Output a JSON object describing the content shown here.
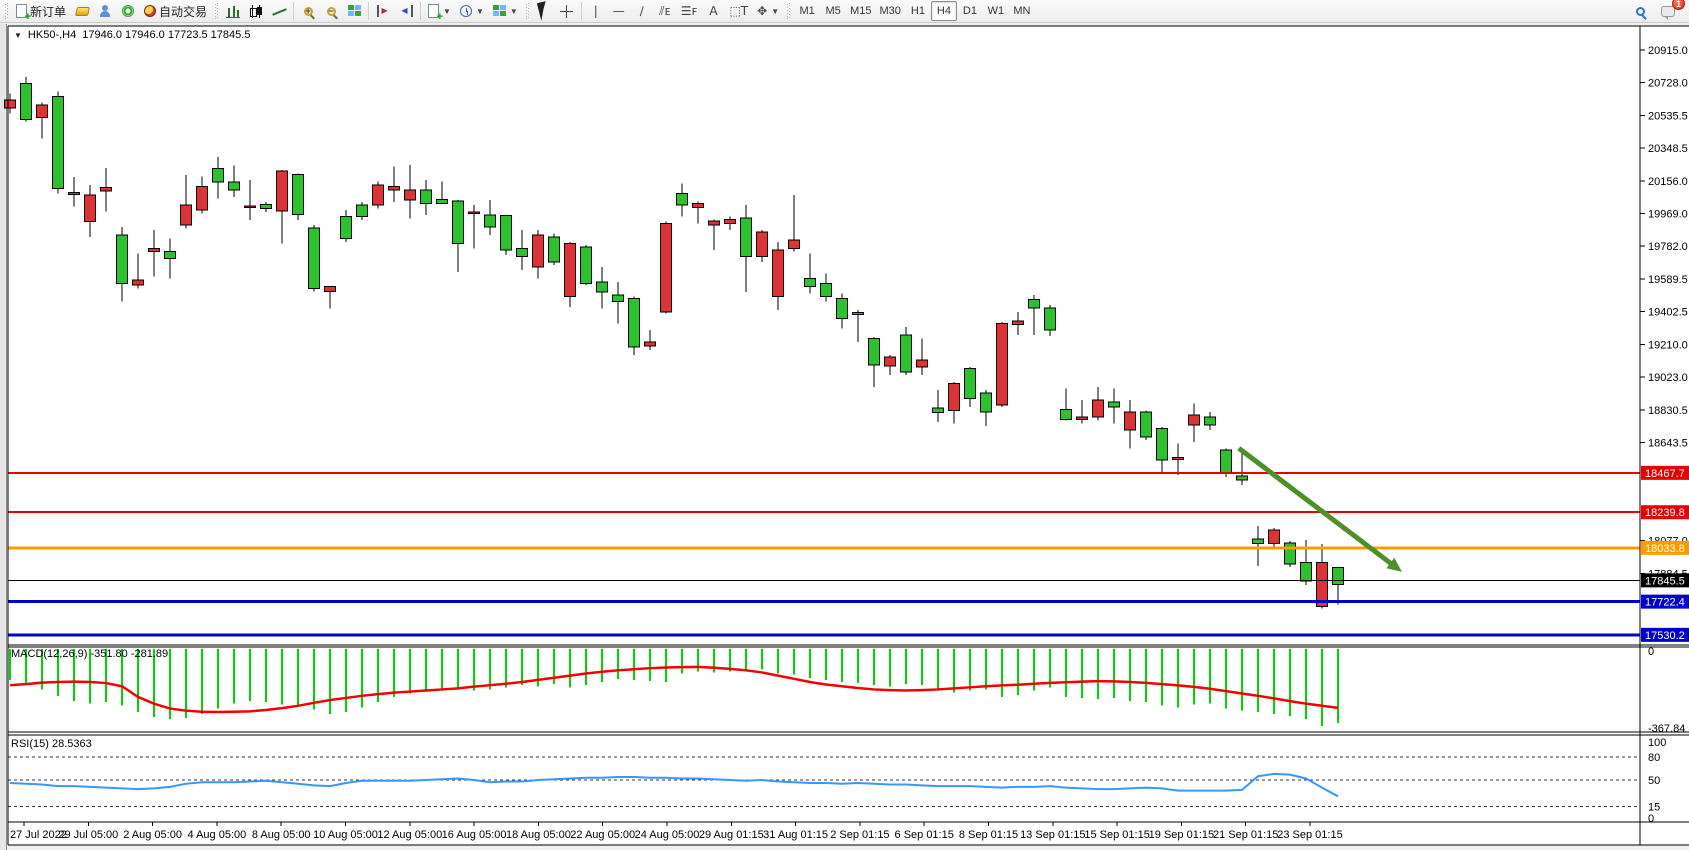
{
  "window": {
    "badge_count": "1"
  },
  "toolbar": {
    "new_order_label": "新订单",
    "autotrading_label": "自动交易",
    "timeframes": [
      {
        "label": "M1",
        "active": false
      },
      {
        "label": "M5",
        "active": false
      },
      {
        "label": "M15",
        "active": false
      },
      {
        "label": "M30",
        "active": false
      },
      {
        "label": "H1",
        "active": false
      },
      {
        "label": "H4",
        "active": true
      },
      {
        "label": "D1",
        "active": false
      },
      {
        "label": "W1",
        "active": false
      },
      {
        "label": "MN",
        "active": false
      }
    ]
  },
  "chart": {
    "symbol_period": "HK50-,H4",
    "ohlc": "17946.0 17946.0 17723.5 17845.5"
  },
  "chart_data": {
    "type": "candlestick",
    "colors": {
      "up": "#2bc32b",
      "down": "#e03232",
      "wick": "#000000",
      "macd_hist": "#00d200",
      "macd_signal": "#f40000",
      "rsi_line": "#3a96ff",
      "arrow": "#4f8f2b",
      "res_line": "#e60000",
      "mid_line": "#ff9900",
      "price_line": "#000000",
      "sup_line": "#0000cc"
    },
    "x_labels": [
      "27 Jul 2022",
      "29 Jul 05:00",
      "2 Aug 05:00",
      "4 Aug 05:00",
      "8 Aug 05:00",
      "10 Aug 05:00",
      "12 Aug 05:00",
      "16 Aug 05:00",
      "18 Aug 05:00",
      "22 Aug 05:00",
      "24 Aug 05:00",
      "29 Aug 01:15",
      "31 Aug 01:15",
      "2 Sep 01:15",
      "6 Sep 01:15",
      "8 Sep 01:15",
      "13 Sep 01:15",
      "15 Sep 01:15",
      "19 Sep 01:15",
      "21 Sep 01:15",
      "23 Sep 01:15"
    ],
    "price_ticks": [
      "20915.0",
      "20728.0",
      "20535.5",
      "20348.5",
      "20156.0",
      "19969.0",
      "19782.0",
      "19589.5",
      "19402.5",
      "19210.0",
      "19023.0",
      "18830.5",
      "18643.5",
      "18077.0",
      "17884.5"
    ],
    "price_lines": [
      {
        "label": "18467.7",
        "price": 18467.7,
        "color": "#e60000",
        "width": 2
      },
      {
        "label": "18239.8",
        "price": 18239.8,
        "color": "#e60000",
        "width": 2
      },
      {
        "label": "18033.8",
        "price": 18033.8,
        "color": "#ff9900",
        "width": 3
      },
      {
        "label": "17845.5",
        "price": 17845.5,
        "color": "#000000",
        "width": 1
      },
      {
        "label": "17722.4",
        "price": 17722.4,
        "color": "#0000cc",
        "width": 3
      },
      {
        "label": "17530.2",
        "price": 17530.2,
        "color": "#0000cc",
        "width": 3
      }
    ],
    "candles": [
      [
        "r",
        20626,
        20578,
        20664,
        20548
      ],
      [
        "g",
        20722,
        20514,
        20760,
        20500
      ],
      [
        "r",
        20597,
        20525,
        20612,
        20404
      ],
      [
        "g",
        20645,
        20114,
        20674,
        20085
      ],
      [
        "r",
        20090,
        20078,
        20181,
        20008
      ],
      [
        "r",
        20076,
        19921,
        20134,
        19834
      ],
      [
        "r",
        20120,
        20100,
        20233,
        19979
      ],
      [
        "g",
        19844,
        19564,
        19892,
        19458
      ],
      [
        "r",
        19583,
        19554,
        19737,
        19535
      ],
      [
        "r",
        19767,
        19748,
        19873,
        19603
      ],
      [
        "g",
        19748,
        19709,
        19825,
        19593
      ],
      [
        "r",
        20018,
        19902,
        20191,
        19883
      ],
      [
        "r",
        20124,
        19989,
        20182,
        19970
      ],
      [
        "g",
        20230,
        20152,
        20297,
        20056
      ],
      [
        "g",
        20152,
        20104,
        20247,
        20065
      ],
      [
        "r",
        20013,
        20003,
        20162,
        19930
      ],
      [
        "g",
        20021,
        19998,
        20036,
        19978
      ],
      [
        "r",
        20215,
        19983,
        20220,
        19796
      ],
      [
        "g",
        20195,
        19964,
        20201,
        19930
      ],
      [
        "g",
        19886,
        19535,
        19902,
        19516
      ],
      [
        "r",
        19545,
        19516,
        19545,
        19420
      ],
      [
        "g",
        19950,
        19825,
        19990,
        19804
      ],
      [
        "g",
        20018,
        19950,
        20036,
        19930
      ],
      [
        "r",
        20134,
        20018,
        20153,
        19998
      ],
      [
        "r",
        20124,
        20105,
        20240,
        20036
      ],
      [
        "r",
        20104,
        20047,
        20249,
        19941
      ],
      [
        "g",
        20104,
        20028,
        20162,
        19960
      ],
      [
        "g",
        20051,
        20028,
        20153,
        20028
      ],
      [
        "g",
        20041,
        19796,
        20047,
        19631
      ],
      [
        "r",
        19978,
        19968,
        20018,
        19767
      ],
      [
        "g",
        19960,
        19892,
        20047,
        19844
      ],
      [
        "g",
        19956,
        19757,
        19960,
        19728
      ],
      [
        "g",
        19767,
        19719,
        19873,
        19641
      ],
      [
        "r",
        19844,
        19660,
        19873,
        19593
      ],
      [
        "g",
        19834,
        19689,
        19853,
        19670
      ],
      [
        "r",
        19796,
        19487,
        19805,
        19429
      ],
      [
        "g",
        19776,
        19564,
        19786,
        19554
      ],
      [
        "g",
        19573,
        19515,
        19660,
        19419
      ],
      [
        "g",
        19496,
        19458,
        19573,
        19333
      ],
      [
        "g",
        19477,
        19197,
        19487,
        19149
      ],
      [
        "r",
        19226,
        19201,
        19294,
        19178
      ],
      [
        "r",
        19912,
        19400,
        19921,
        19391
      ],
      [
        "g",
        20085,
        20018,
        20143,
        19950
      ],
      [
        "r",
        20028,
        20004,
        20037,
        19912
      ],
      [
        "r",
        19925,
        19902,
        19935,
        19757
      ],
      [
        "r",
        19935,
        19912,
        19950,
        19873
      ],
      [
        "g",
        19944,
        19719,
        20018,
        19515
      ],
      [
        "r",
        19863,
        19719,
        19873,
        19689
      ],
      [
        "r",
        19757,
        19487,
        19805,
        19409
      ],
      [
        "r",
        19815,
        19767,
        20075,
        19748
      ],
      [
        "g",
        19593,
        19545,
        19738,
        19506
      ],
      [
        "g",
        19564,
        19487,
        19622,
        19458
      ],
      [
        "g",
        19477,
        19361,
        19506,
        19304
      ],
      [
        "g",
        19395,
        19385,
        19410,
        19226
      ],
      [
        "g",
        19246,
        19091,
        19255,
        18966
      ],
      [
        "r",
        19139,
        19085,
        19149,
        19033
      ],
      [
        "g",
        19265,
        19052,
        19313,
        19033
      ],
      [
        "r",
        19120,
        19081,
        19246,
        19033
      ],
      [
        "g",
        18844,
        18817,
        18946,
        18763
      ],
      [
        "r",
        18985,
        18830,
        18994,
        18753
      ],
      [
        "g",
        19072,
        18898,
        19081,
        18849
      ],
      [
        "g",
        18931,
        18821,
        18946,
        18740
      ],
      [
        "r",
        19333,
        18859,
        19342,
        18849
      ],
      [
        "r",
        19346,
        19327,
        19400,
        19265
      ],
      [
        "g",
        19472,
        19423,
        19497,
        19265
      ],
      [
        "g",
        19423,
        19294,
        19438,
        19259
      ],
      [
        "g",
        18835,
        18777,
        18956,
        18772
      ],
      [
        "r",
        18792,
        18777,
        18888,
        18753
      ],
      [
        "r",
        18889,
        18792,
        18966,
        18772
      ],
      [
        "g",
        18879,
        18849,
        18956,
        18753
      ],
      [
        "r",
        18821,
        18715,
        18889,
        18609
      ],
      [
        "g",
        18821,
        18676,
        18830,
        18657
      ],
      [
        "g",
        18725,
        18541,
        18734,
        18464
      ],
      [
        "r",
        18556,
        18546,
        18638,
        18454
      ],
      [
        "r",
        18802,
        18744,
        18869,
        18647
      ],
      [
        "g",
        18792,
        18744,
        18821,
        18715
      ],
      [
        "g",
        18599,
        18464,
        18609,
        18444
      ],
      [
        "g",
        18449,
        18426,
        18609,
        18396
      ],
      [
        "g",
        18085,
        18058,
        18160,
        17930
      ],
      [
        "r",
        18137,
        18060,
        18150,
        18041
      ],
      [
        "g",
        18063,
        17940,
        18073,
        17924
      ],
      [
        "g",
        17950,
        17843,
        18079,
        17818
      ],
      [
        "r",
        17948,
        17693,
        18055,
        17684
      ],
      [
        "g",
        17919,
        17823,
        17924,
        17707
      ]
    ],
    "macd": {
      "label": "MACD(12,26,9) -351.80 -281.89",
      "ticks": [
        "0",
        "-367.84"
      ],
      "hist": [
        -150,
        -165,
        -195,
        -225,
        -250,
        -260,
        -255,
        -270,
        -300,
        -325,
        -335,
        -330,
        -310,
        -285,
        -260,
        -250,
        -255,
        -265,
        -270,
        -290,
        -310,
        -300,
        -280,
        -255,
        -230,
        -215,
        -200,
        -190,
        -195,
        -200,
        -195,
        -185,
        -175,
        -180,
        -170,
        -185,
        -175,
        -160,
        -145,
        -150,
        -155,
        -160,
        -120,
        -110,
        -115,
        -110,
        -105,
        -100,
        -120,
        -125,
        -140,
        -150,
        -160,
        -165,
        -175,
        -180,
        -170,
        -175,
        -200,
        -210,
        -200,
        -195,
        -230,
        -220,
        -200,
        -185,
        -230,
        -235,
        -240,
        -235,
        -250,
        -255,
        -270,
        -280,
        -265,
        -260,
        -285,
        -295,
        -300,
        -310,
        -320,
        -335,
        -367.84,
        -351.8
      ],
      "signal": [
        -175,
        -170,
        -163,
        -160,
        -158,
        -160,
        -165,
        -180,
        -230,
        -262,
        -285,
        -295,
        -300,
        -301,
        -300,
        -298,
        -292,
        -283,
        -272,
        -258,
        -245,
        -235,
        -225,
        -217,
        -210,
        -205,
        -200,
        -195,
        -190,
        -182,
        -175,
        -168,
        -160,
        -150,
        -140,
        -130,
        -120,
        -112,
        -105,
        -100,
        -95,
        -92,
        -90,
        -89,
        -93,
        -98,
        -105,
        -115,
        -130,
        -145,
        -160,
        -172,
        -180,
        -188,
        -195,
        -198,
        -200,
        -198,
        -195,
        -190,
        -185,
        -180,
        -176,
        -173,
        -168,
        -164,
        -161,
        -158,
        -156,
        -157,
        -160,
        -164,
        -170,
        -176,
        -183,
        -192,
        -203,
        -214,
        -225,
        -237,
        -250,
        -262,
        -272,
        -281.89
      ]
    },
    "rsi": {
      "label": "RSI(15) 28.5363",
      "ticks": [
        "100",
        "80",
        "50",
        "15",
        "0"
      ],
      "levels": [
        80,
        50,
        15
      ],
      "values": [
        46,
        45,
        44,
        42,
        42,
        41,
        40,
        39,
        38,
        39,
        41,
        45,
        47,
        47,
        47,
        48,
        49,
        47,
        45,
        43,
        42,
        46,
        49,
        49,
        49,
        49,
        50,
        51,
        52,
        50,
        47,
        48,
        48,
        50,
        51,
        52,
        53,
        53,
        54,
        54,
        53,
        53,
        52,
        52,
        51,
        50,
        49,
        50,
        48,
        47,
        46,
        46,
        45,
        46,
        45,
        44,
        44,
        43,
        42,
        42,
        42,
        41,
        40,
        41,
        41,
        42,
        40,
        39,
        38,
        38,
        39,
        40,
        39,
        36,
        36,
        36,
        36,
        37,
        55,
        58,
        57,
        52,
        40,
        28.5363
      ]
    },
    "arrow": {
      "from_bar": 76.8,
      "from_price": 18610,
      "to_bar": 87,
      "to_price": 17895
    }
  }
}
